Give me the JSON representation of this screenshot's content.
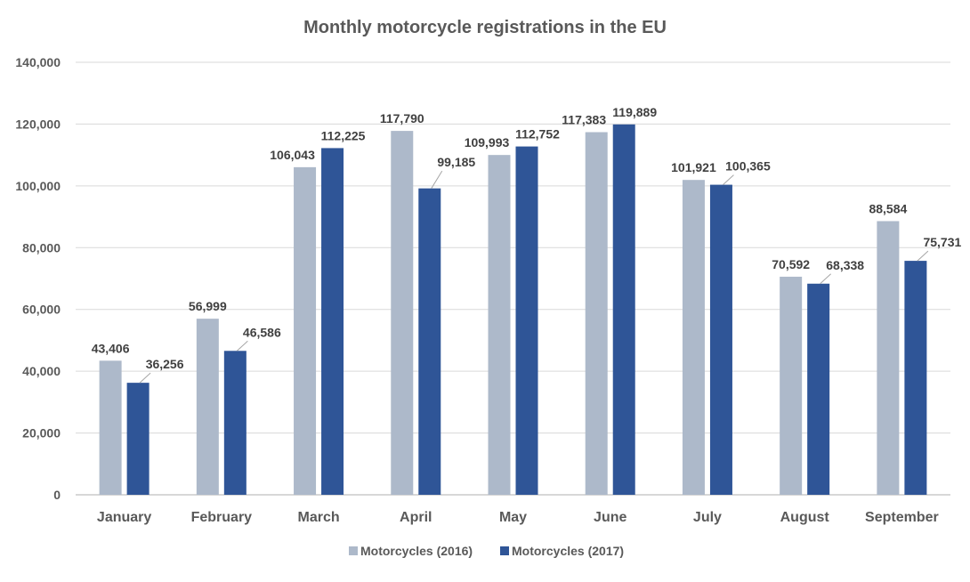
{
  "chart_data": {
    "type": "bar",
    "title": "Monthly motorcycle registrations in the EU",
    "xlabel": "",
    "ylabel": "",
    "ylim": [
      0,
      140000
    ],
    "yticks": [
      0,
      20000,
      40000,
      60000,
      80000,
      100000,
      120000,
      140000
    ],
    "ytick_labels": [
      "0",
      "20,000",
      "40,000",
      "60,000",
      "80,000",
      "100,000",
      "120,000",
      "140,000"
    ],
    "grid": true,
    "legend_position": "bottom",
    "categories": [
      "January",
      "February",
      "March",
      "April",
      "May",
      "June",
      "July",
      "August",
      "September"
    ],
    "series": [
      {
        "name": "Motorcycles (2016)",
        "color": "#adb9ca",
        "values": [
          43406,
          56999,
          106043,
          117790,
          109993,
          117383,
          101921,
          70592,
          88584
        ],
        "labels": [
          "43,406",
          "56,999",
          "106,043",
          "117,790",
          "109,993",
          "117,383",
          "101,921",
          "70,592",
          "88,584"
        ]
      },
      {
        "name": "Motorcycles (2017)",
        "color": "#2f5597",
        "values": [
          36256,
          46586,
          112225,
          99185,
          112752,
          119889,
          100365,
          68338,
          75731
        ],
        "labels": [
          "36,256",
          "46,586",
          "112,225",
          "99,185",
          "112,752",
          "119,889",
          "100,365",
          "68,338",
          "75,731"
        ]
      }
    ]
  }
}
